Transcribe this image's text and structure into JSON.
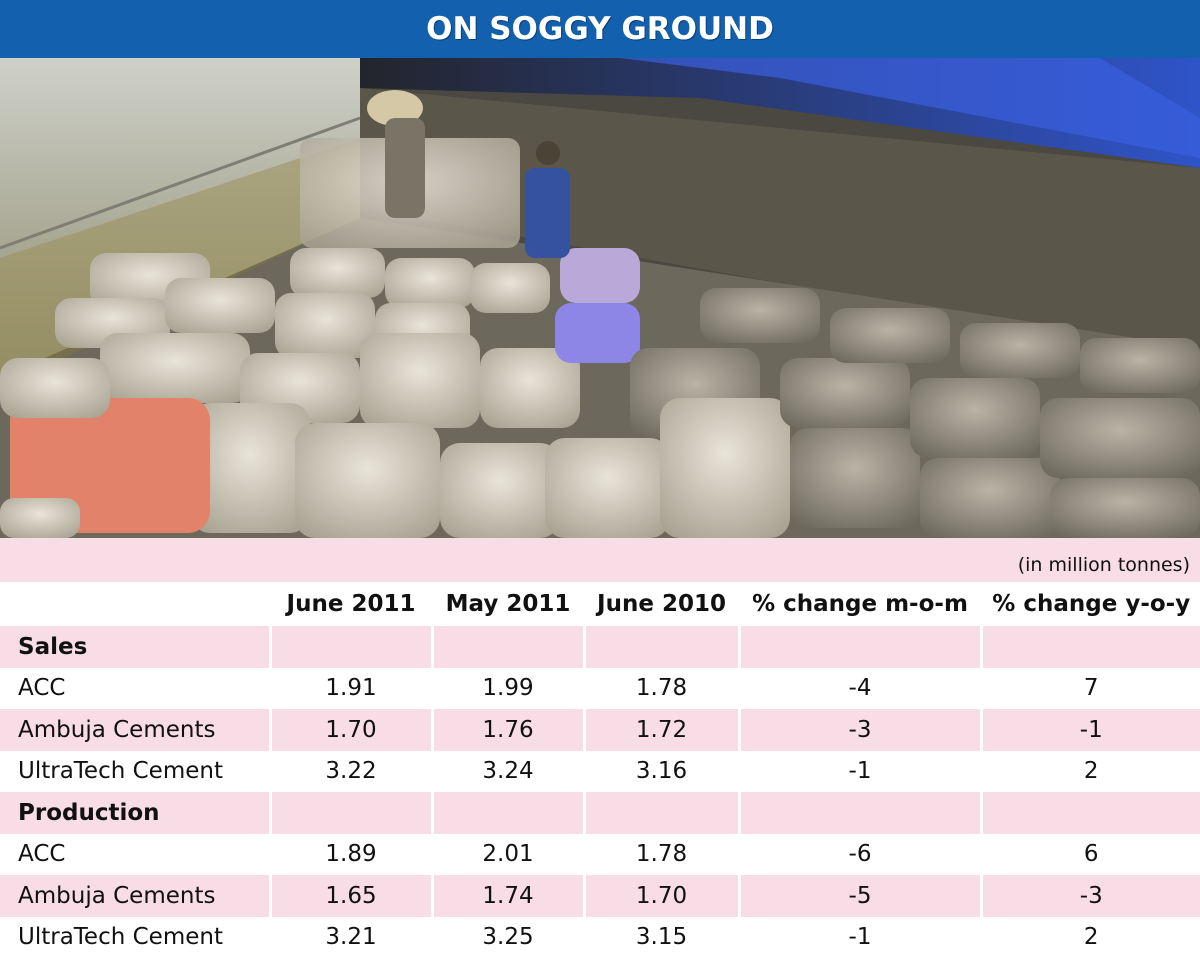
{
  "banner": {
    "title": "ON SOGGY GROUND"
  },
  "photo": {
    "description_icon": "cement-bags-warehouse-photo"
  },
  "table": {
    "unit_note": "(in million tonnes)",
    "columns": [
      "",
      "June 2011",
      "May 2011",
      "June 2010",
      "% change m-o-m",
      "% change y-o-y"
    ],
    "sections": [
      {
        "title": "Sales",
        "rows": [
          {
            "name": "ACC",
            "values": [
              "1.91",
              "1.99",
              "1.78",
              "-4",
              "7"
            ]
          },
          {
            "name": "Ambuja Cements",
            "values": [
              "1.70",
              "1.76",
              "1.72",
              "-3",
              "-1"
            ]
          },
          {
            "name": "UltraTech Cement",
            "values": [
              "3.22",
              "3.24",
              "3.16",
              "-1",
              "2"
            ]
          }
        ]
      },
      {
        "title": "Production",
        "rows": [
          {
            "name": "ACC",
            "values": [
              "1.89",
              "2.01",
              "1.78",
              "-6",
              "6"
            ]
          },
          {
            "name": "Ambuja Cements",
            "values": [
              "1.65",
              "1.74",
              "1.70",
              "-5",
              "-3"
            ]
          },
          {
            "name": "UltraTech Cement",
            "values": [
              "3.21",
              "3.25",
              "3.15",
              "-1",
              "2"
            ]
          }
        ]
      }
    ]
  },
  "colors": {
    "banner": "#1260ae",
    "row_tint": "#f8dce6"
  }
}
